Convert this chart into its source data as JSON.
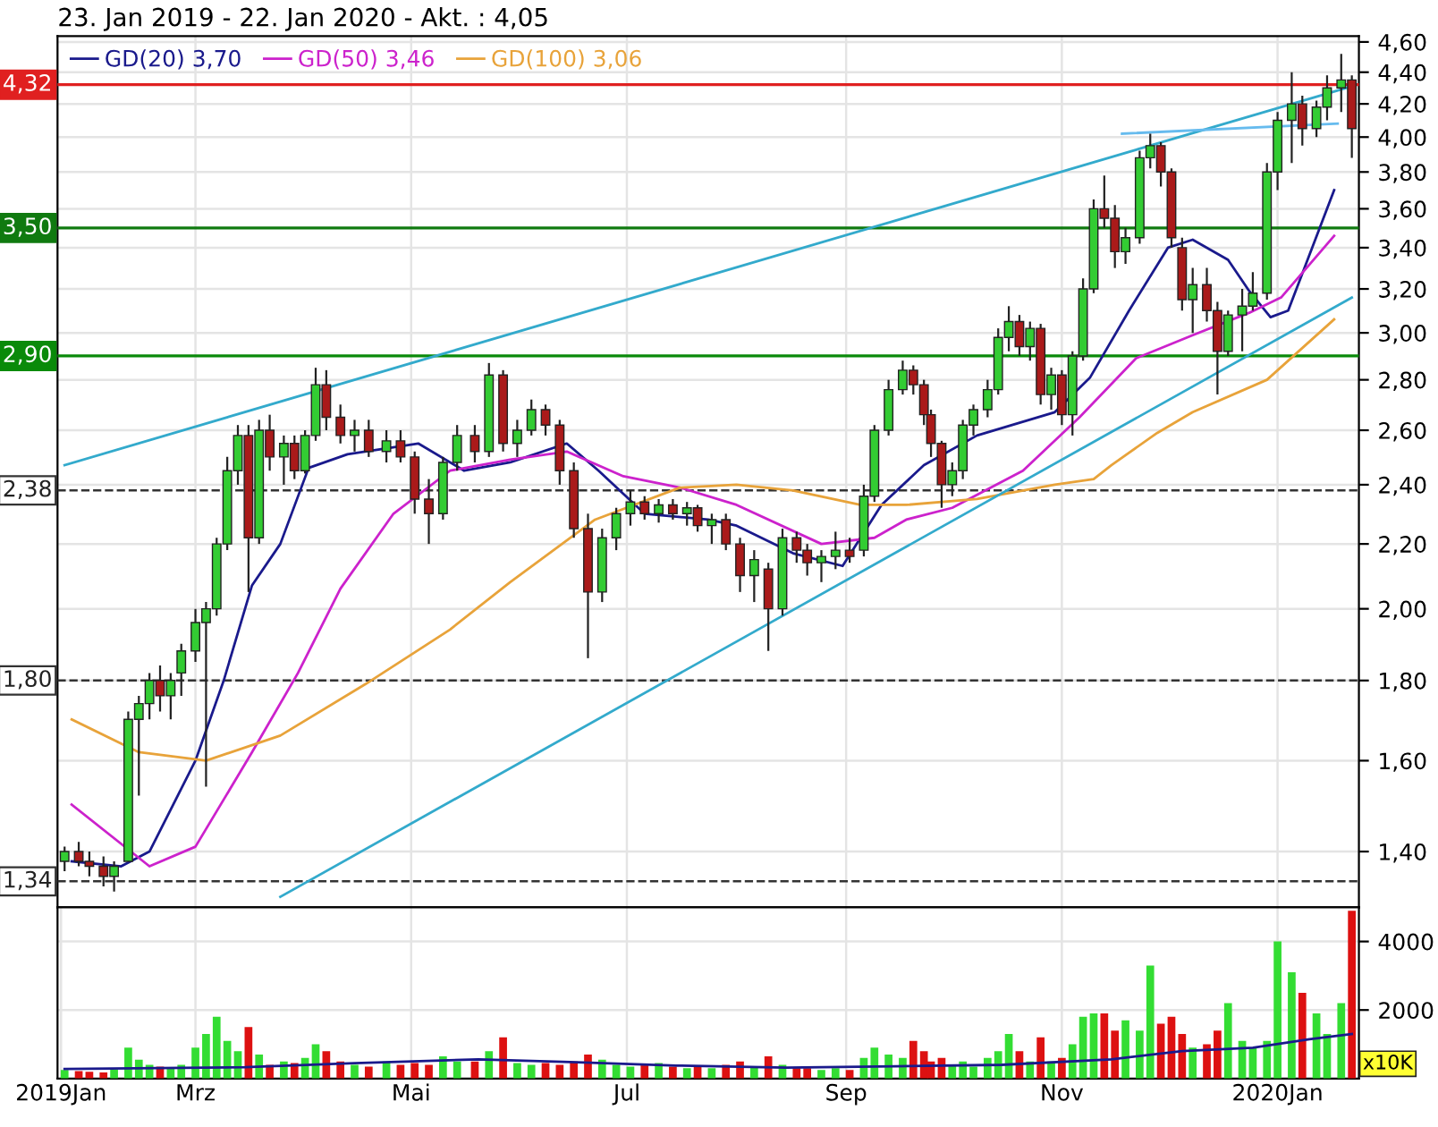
{
  "chart_data": [
    {
      "type": "candlestick",
      "title": "23. Jan 2019 - 22. Jan 2020 - Akt. : 4,05",
      "x": [
        "2019-01-23",
        "2019-01-27",
        "2019-01-30",
        "2019-02-03",
        "2019-02-06",
        "2019-02-10",
        "2019-02-13",
        "2019-02-16",
        "2019-02-19",
        "2019-02-22",
        "2019-02-25",
        "2019-03-01",
        "2019-03-04",
        "2019-03-07",
        "2019-03-10",
        "2019-03-13",
        "2019-03-16",
        "2019-03-19",
        "2019-03-22",
        "2019-03-26",
        "2019-03-29",
        "2019-04-01",
        "2019-04-04",
        "2019-04-07",
        "2019-04-11",
        "2019-04-15",
        "2019-04-19",
        "2019-04-24",
        "2019-04-28",
        "2019-05-02",
        "2019-05-06",
        "2019-05-10",
        "2019-05-14",
        "2019-05-19",
        "2019-05-23",
        "2019-05-27",
        "2019-05-31",
        "2019-06-04",
        "2019-06-08",
        "2019-06-12",
        "2019-06-16",
        "2019-06-20",
        "2019-06-24",
        "2019-06-28",
        "2019-07-02",
        "2019-07-06",
        "2019-07-10",
        "2019-07-14",
        "2019-07-18",
        "2019-07-21",
        "2019-07-25",
        "2019-07-29",
        "2019-08-02",
        "2019-08-06",
        "2019-08-10",
        "2019-08-14",
        "2019-08-18",
        "2019-08-21",
        "2019-08-25",
        "2019-08-29",
        "2019-09-02",
        "2019-09-06",
        "2019-09-09",
        "2019-09-13",
        "2019-09-17",
        "2019-09-20",
        "2019-09-23",
        "2019-09-25",
        "2019-09-28",
        "2019-10-01",
        "2019-10-04",
        "2019-10-07",
        "2019-10-11",
        "2019-10-14",
        "2019-10-17",
        "2019-10-20",
        "2019-10-23",
        "2019-10-26",
        "2019-10-29",
        "2019-11-01",
        "2019-11-04",
        "2019-11-07",
        "2019-11-10",
        "2019-11-13",
        "2019-11-16",
        "2019-11-19",
        "2019-11-23",
        "2019-11-26",
        "2019-11-29",
        "2019-12-02",
        "2019-12-05",
        "2019-12-08",
        "2019-12-12",
        "2019-12-15",
        "2019-12-18",
        "2019-12-22",
        "2019-12-25",
        "2019-12-29",
        "2020-01-01",
        "2020-01-05",
        "2020-01-08",
        "2020-01-12",
        "2020-01-15",
        "2020-01-19",
        "2020-01-22"
      ],
      "ohlc": [
        [
          1.38,
          1.41,
          1.36,
          1.4
        ],
        [
          1.4,
          1.42,
          1.37,
          1.38
        ],
        [
          1.38,
          1.4,
          1.35,
          1.37
        ],
        [
          1.37,
          1.39,
          1.33,
          1.35
        ],
        [
          1.35,
          1.38,
          1.32,
          1.37
        ],
        [
          1.38,
          1.72,
          1.38,
          1.7
        ],
        [
          1.7,
          1.76,
          1.52,
          1.74
        ],
        [
          1.74,
          1.82,
          1.7,
          1.8
        ],
        [
          1.8,
          1.84,
          1.72,
          1.76
        ],
        [
          1.76,
          1.82,
          1.7,
          1.8
        ],
        [
          1.82,
          1.9,
          1.76,
          1.88
        ],
        [
          1.88,
          2.0,
          1.85,
          1.96
        ],
        [
          1.96,
          2.02,
          1.54,
          2.0
        ],
        [
          2.0,
          2.22,
          1.98,
          2.2
        ],
        [
          2.2,
          2.5,
          2.18,
          2.45
        ],
        [
          2.45,
          2.62,
          2.4,
          2.58
        ],
        [
          2.58,
          2.62,
          2.05,
          2.22
        ],
        [
          2.22,
          2.64,
          2.2,
          2.6
        ],
        [
          2.6,
          2.66,
          2.45,
          2.5
        ],
        [
          2.5,
          2.58,
          2.4,
          2.55
        ],
        [
          2.55,
          2.58,
          2.42,
          2.45
        ],
        [
          2.45,
          2.6,
          2.44,
          2.58
        ],
        [
          2.58,
          2.85,
          2.56,
          2.78
        ],
        [
          2.78,
          2.84,
          2.6,
          2.65
        ],
        [
          2.65,
          2.7,
          2.55,
          2.58
        ],
        [
          2.58,
          2.64,
          2.52,
          2.6
        ],
        [
          2.6,
          2.64,
          2.5,
          2.52
        ],
        [
          2.52,
          2.6,
          2.48,
          2.56
        ],
        [
          2.56,
          2.6,
          2.48,
          2.5
        ],
        [
          2.5,
          2.52,
          2.3,
          2.35
        ],
        [
          2.35,
          2.42,
          2.2,
          2.3
        ],
        [
          2.3,
          2.5,
          2.28,
          2.48
        ],
        [
          2.48,
          2.62,
          2.45,
          2.58
        ],
        [
          2.58,
          2.62,
          2.48,
          2.52
        ],
        [
          2.52,
          2.87,
          2.5,
          2.82
        ],
        [
          2.82,
          2.84,
          2.52,
          2.55
        ],
        [
          2.55,
          2.64,
          2.5,
          2.6
        ],
        [
          2.6,
          2.72,
          2.58,
          2.68
        ],
        [
          2.68,
          2.7,
          2.58,
          2.62
        ],
        [
          2.62,
          2.64,
          2.4,
          2.45
        ],
        [
          2.45,
          2.48,
          2.22,
          2.25
        ],
        [
          2.25,
          2.3,
          1.86,
          2.05
        ],
        [
          2.05,
          2.25,
          2.02,
          2.22
        ],
        [
          2.22,
          2.32,
          2.18,
          2.3
        ],
        [
          2.3,
          2.38,
          2.26,
          2.34
        ],
        [
          2.34,
          2.36,
          2.28,
          2.3
        ],
        [
          2.3,
          2.35,
          2.27,
          2.33
        ],
        [
          2.33,
          2.35,
          2.28,
          2.3
        ],
        [
          2.3,
          2.34,
          2.26,
          2.32
        ],
        [
          2.32,
          2.33,
          2.24,
          2.26
        ],
        [
          2.26,
          2.3,
          2.2,
          2.28
        ],
        [
          2.28,
          2.3,
          2.18,
          2.2
        ],
        [
          2.2,
          2.22,
          2.05,
          2.1
        ],
        [
          2.1,
          2.18,
          2.02,
          2.15
        ],
        [
          2.12,
          2.14,
          1.88,
          2.0
        ],
        [
          2.0,
          2.25,
          1.98,
          2.22
        ],
        [
          2.22,
          2.24,
          2.14,
          2.18
        ],
        [
          2.18,
          2.2,
          2.1,
          2.14
        ],
        [
          2.14,
          2.18,
          2.08,
          2.16
        ],
        [
          2.16,
          2.24,
          2.12,
          2.18
        ],
        [
          2.18,
          2.22,
          2.14,
          2.16
        ],
        [
          2.18,
          2.4,
          2.16,
          2.36
        ],
        [
          2.36,
          2.62,
          2.34,
          2.6
        ],
        [
          2.6,
          2.8,
          2.58,
          2.76
        ],
        [
          2.76,
          2.88,
          2.74,
          2.84
        ],
        [
          2.84,
          2.86,
          2.74,
          2.78
        ],
        [
          2.78,
          2.8,
          2.62,
          2.66
        ],
        [
          2.66,
          2.68,
          2.5,
          2.55
        ],
        [
          2.55,
          2.56,
          2.32,
          2.4
        ],
        [
          2.4,
          2.48,
          2.36,
          2.45
        ],
        [
          2.45,
          2.64,
          2.42,
          2.62
        ],
        [
          2.62,
          2.7,
          2.58,
          2.68
        ],
        [
          2.68,
          2.8,
          2.65,
          2.76
        ],
        [
          2.76,
          3.02,
          2.74,
          2.98
        ],
        [
          2.98,
          3.12,
          2.92,
          3.05
        ],
        [
          3.05,
          3.08,
          2.9,
          2.94
        ],
        [
          2.94,
          3.05,
          2.88,
          3.02
        ],
        [
          3.02,
          3.04,
          2.7,
          2.74
        ],
        [
          2.74,
          2.85,
          2.68,
          2.82
        ],
        [
          2.82,
          2.84,
          2.62,
          2.66
        ],
        [
          2.66,
          2.92,
          2.58,
          2.9
        ],
        [
          2.9,
          3.25,
          2.88,
          3.2
        ],
        [
          3.2,
          3.65,
          3.18,
          3.6
        ],
        [
          3.6,
          3.78,
          3.5,
          3.55
        ],
        [
          3.55,
          3.62,
          3.3,
          3.38
        ],
        [
          3.38,
          3.5,
          3.32,
          3.45
        ],
        [
          3.45,
          3.92,
          3.42,
          3.88
        ],
        [
          3.88,
          4.02,
          3.82,
          3.95
        ],
        [
          3.95,
          3.97,
          3.72,
          3.8
        ],
        [
          3.8,
          3.82,
          3.4,
          3.45
        ],
        [
          3.4,
          3.45,
          3.1,
          3.15
        ],
        [
          3.15,
          3.3,
          3.0,
          3.22
        ],
        [
          3.22,
          3.3,
          3.05,
          3.1
        ],
        [
          3.1,
          3.14,
          2.74,
          2.92
        ],
        [
          2.92,
          3.1,
          2.9,
          3.08
        ],
        [
          3.08,
          3.2,
          2.92,
          3.12
        ],
        [
          3.12,
          3.28,
          3.1,
          3.18
        ],
        [
          3.18,
          3.85,
          3.15,
          3.8
        ],
        [
          3.8,
          4.15,
          3.7,
          4.1
        ],
        [
          4.1,
          4.4,
          3.85,
          4.2
        ],
        [
          4.2,
          4.25,
          3.95,
          4.05
        ],
        [
          4.05,
          4.22,
          4.0,
          4.18
        ],
        [
          4.18,
          4.38,
          4.1,
          4.3
        ],
        [
          4.3,
          4.52,
          4.15,
          4.35
        ],
        [
          4.35,
          4.38,
          3.88,
          4.05
        ]
      ],
      "series": [
        {
          "type": "line",
          "name": "GD(20) 3,70",
          "color": "#1a1a8c",
          "x": [
            "2019-01-25",
            "2019-02-08",
            "2019-02-16",
            "2019-03-01",
            "2019-03-09",
            "2019-03-17",
            "2019-03-25",
            "2019-04-02",
            "2019-04-13",
            "2019-05-03",
            "2019-05-16",
            "2019-05-29",
            "2019-06-14",
            "2019-06-23",
            "2019-07-06",
            "2019-07-24",
            "2019-08-01",
            "2019-08-17",
            "2019-08-31",
            "2019-09-11",
            "2019-09-23",
            "2019-10-08",
            "2019-10-30",
            "2019-11-09",
            "2019-11-20",
            "2019-12-01",
            "2019-12-08",
            "2019-12-18",
            "2019-12-24",
            "2019-12-30",
            "2020-01-04",
            "2020-01-17"
          ],
          "values": [
            1.38,
            1.37,
            1.4,
            1.6,
            1.8,
            2.07,
            2.2,
            2.46,
            2.51,
            2.55,
            2.45,
            2.48,
            2.55,
            2.45,
            2.3,
            2.28,
            2.26,
            2.17,
            2.13,
            2.33,
            2.47,
            2.58,
            2.67,
            2.81,
            3.1,
            3.4,
            3.44,
            3.34,
            3.19,
            3.07,
            3.1,
            3.7
          ]
        },
        {
          "type": "line",
          "name": "GD(50) 3,46",
          "color": "#cc22cc",
          "x": [
            "2019-01-25",
            "2019-02-16",
            "2019-03-01",
            "2019-03-17",
            "2019-03-30",
            "2019-04-11",
            "2019-04-26",
            "2019-05-12",
            "2019-05-29",
            "2019-06-14",
            "2019-06-30",
            "2019-07-16",
            "2019-08-01",
            "2019-08-25",
            "2019-09-09",
            "2019-09-18",
            "2019-10-01",
            "2019-10-21",
            "2019-11-06",
            "2019-11-22",
            "2019-12-08",
            "2019-12-24",
            "2020-01-02",
            "2020-01-17"
          ],
          "values": [
            1.5,
            1.37,
            1.41,
            1.62,
            1.82,
            2.06,
            2.3,
            2.45,
            2.49,
            2.52,
            2.43,
            2.39,
            2.33,
            2.2,
            2.22,
            2.28,
            2.32,
            2.45,
            2.65,
            2.89,
            2.99,
            3.09,
            3.16,
            3.46
          ]
        },
        {
          "type": "line",
          "name": "GD(100) 3,06",
          "color": "#e8a33a",
          "x": [
            "2019-01-25",
            "2019-02-13",
            "2019-03-04",
            "2019-03-25",
            "2019-04-18",
            "2019-05-12",
            "2019-05-29",
            "2019-06-22",
            "2019-07-16",
            "2019-08-01",
            "2019-08-17",
            "2019-09-05",
            "2019-09-18",
            "2019-10-08",
            "2019-10-30",
            "2019-11-10",
            "2019-11-15",
            "2019-11-28",
            "2019-12-08",
            "2019-12-29",
            "2020-01-17"
          ],
          "values": [
            1.7,
            1.62,
            1.6,
            1.66,
            1.79,
            1.94,
            2.08,
            2.28,
            2.39,
            2.4,
            2.38,
            2.33,
            2.33,
            2.35,
            2.4,
            2.42,
            2.47,
            2.59,
            2.67,
            2.8,
            3.06
          ]
        },
        {
          "type": "line",
          "color": "#33aacc",
          "x": [
            "2019-01-23",
            "2020-01-22"
          ],
          "values": [
            2.47,
            4.31
          ]
        },
        {
          "type": "line",
          "color": "#33aacc",
          "x": [
            "2019-03-25",
            "2020-01-22"
          ],
          "values": [
            1.31,
            3.16
          ]
        },
        {
          "type": "line",
          "color": "#66bbee",
          "x": [
            "2019-11-18",
            "2020-01-18"
          ],
          "values": [
            4.02,
            4.08
          ]
        }
      ],
      "xlim": [
        "2019-01-21",
        "2020-01-24"
      ],
      "ylim": [
        1.29,
        4.64
      ],
      "log": true,
      "yticks": [
        {
          "value": 1.4,
          "label": "1,40"
        },
        {
          "value": 1.6,
          "label": "1,60"
        },
        {
          "value": 1.8,
          "label": "1,80"
        },
        {
          "value": 2.0,
          "label": "2,00"
        },
        {
          "value": 2.2,
          "label": "2,20"
        },
        {
          "value": 2.4,
          "label": "2,40"
        },
        {
          "value": 2.6,
          "label": "2,60"
        },
        {
          "value": 2.8,
          "label": "2,80"
        },
        {
          "value": 3.0,
          "label": "3,00"
        },
        {
          "value": 3.2,
          "label": "3,20"
        },
        {
          "value": 3.4,
          "label": "3,40"
        },
        {
          "value": 3.6,
          "label": "3,60"
        },
        {
          "value": 3.8,
          "label": "3,80"
        },
        {
          "value": 4.0,
          "label": "4,00"
        },
        {
          "value": 4.2,
          "label": "4,20"
        },
        {
          "value": 4.4,
          "label": "4,40"
        },
        {
          "value": 4.6,
          "label": "4,60"
        }
      ],
      "xticks": [
        {
          "value": "2019-03-01",
          "label": null
        },
        {
          "value": "2019-05-01",
          "label": null
        },
        {
          "value": "2019-07-01",
          "label": null
        },
        {
          "value": "2019-09-01",
          "label": null
        },
        {
          "value": "2019-11-01",
          "label": null
        },
        {
          "value": "2020-01-01",
          "label": null
        }
      ],
      "tick_labels": "y",
      "grid": true,
      "legend": "top left",
      "ref_lines": [
        {
          "axis": "y",
          "value": 4.32,
          "label": "4,32",
          "color": "#e02020"
        },
        {
          "axis": "y",
          "value": 3.5,
          "label": "3,50",
          "color": "#107a10"
        },
        {
          "axis": "y",
          "value": 2.9,
          "label": "2,90",
          "color": "#0a8a0a"
        },
        {
          "axis": "y",
          "value": 2.38,
          "label": "2,38",
          "color": "#333333",
          "line_style": "dashed"
        },
        {
          "axis": "y",
          "value": 1.8,
          "label": "1,80",
          "color": "#333333",
          "line_style": "dashed"
        },
        {
          "axis": "y",
          "value": 1.34,
          "label": "1,34",
          "color": "#333333",
          "line_style": "dashed"
        }
      ]
    },
    {
      "type": "bar",
      "x": [
        "2019-01-23",
        "2019-01-27",
        "2019-01-30",
        "2019-02-03",
        "2019-02-06",
        "2019-02-10",
        "2019-02-13",
        "2019-02-16",
        "2019-02-19",
        "2019-02-22",
        "2019-02-25",
        "2019-03-01",
        "2019-03-04",
        "2019-03-07",
        "2019-03-10",
        "2019-03-13",
        "2019-03-16",
        "2019-03-19",
        "2019-03-22",
        "2019-03-26",
        "2019-03-29",
        "2019-04-01",
        "2019-04-04",
        "2019-04-07",
        "2019-04-11",
        "2019-04-15",
        "2019-04-19",
        "2019-04-24",
        "2019-04-28",
        "2019-05-02",
        "2019-05-06",
        "2019-05-10",
        "2019-05-14",
        "2019-05-19",
        "2019-05-23",
        "2019-05-27",
        "2019-05-31",
        "2019-06-04",
        "2019-06-08",
        "2019-06-12",
        "2019-06-16",
        "2019-06-20",
        "2019-06-24",
        "2019-06-28",
        "2019-07-02",
        "2019-07-06",
        "2019-07-10",
        "2019-07-14",
        "2019-07-18",
        "2019-07-21",
        "2019-07-25",
        "2019-07-29",
        "2019-08-02",
        "2019-08-06",
        "2019-08-10",
        "2019-08-14",
        "2019-08-18",
        "2019-08-21",
        "2019-08-25",
        "2019-08-29",
        "2019-09-02",
        "2019-09-06",
        "2019-09-09",
        "2019-09-13",
        "2019-09-17",
        "2019-09-20",
        "2019-09-23",
        "2019-09-25",
        "2019-09-28",
        "2019-10-01",
        "2019-10-04",
        "2019-10-07",
        "2019-10-11",
        "2019-10-14",
        "2019-10-17",
        "2019-10-20",
        "2019-10-23",
        "2019-10-26",
        "2019-10-29",
        "2019-11-01",
        "2019-11-04",
        "2019-11-07",
        "2019-11-10",
        "2019-11-13",
        "2019-11-16",
        "2019-11-19",
        "2019-11-23",
        "2019-11-26",
        "2019-11-29",
        "2019-12-02",
        "2019-12-05",
        "2019-12-08",
        "2019-12-12",
        "2019-12-15",
        "2019-12-18",
        "2019-12-22",
        "2019-12-25",
        "2019-12-29",
        "2020-01-01",
        "2020-01-05",
        "2020-01-08",
        "2020-01-12",
        "2020-01-15",
        "2020-01-19",
        "2020-01-22"
      ],
      "series": [
        {
          "type": "bar",
          "values": [
            250,
            220,
            200,
            180,
            260,
            900,
            550,
            400,
            350,
            300,
            400,
            900,
            1300,
            1800,
            1100,
            800,
            1500,
            700,
            400,
            500,
            450,
            600,
            1000,
            800,
            500,
            400,
            350,
            500,
            400,
            450,
            400,
            650,
            500,
            500,
            800,
            1200,
            450,
            400,
            450,
            400,
            500,
            700,
            550,
            400,
            350,
            400,
            450,
            350,
            300,
            350,
            300,
            400,
            500,
            350,
            650,
            400,
            300,
            300,
            250,
            300,
            250,
            600,
            900,
            700,
            600,
            1100,
            800,
            500,
            600,
            400,
            500,
            350,
            600,
            800,
            1300,
            800,
            500,
            1200,
            500,
            600,
            1000,
            1800,
            1900,
            1900,
            1400,
            1700,
            1400,
            3300,
            1600,
            1800,
            1300,
            900,
            1000,
            1400,
            2200,
            1100,
            900,
            1100,
            4000,
            3100,
            2500,
            1900,
            1300,
            2200,
            4900
          ],
          "colors": [
            "#33dd33",
            "#dd1111",
            "#dd1111",
            "#dd1111",
            "#33dd33",
            "#33dd33",
            "#33dd33",
            "#33dd33",
            "#dd1111",
            "#33dd33",
            "#33dd33",
            "#33dd33",
            "#33dd33",
            "#33dd33",
            "#33dd33",
            "#33dd33",
            "#dd1111",
            "#33dd33",
            "#dd1111",
            "#33dd33",
            "#dd1111",
            "#33dd33",
            "#33dd33",
            "#dd1111",
            "#dd1111",
            "#33dd33",
            "#dd1111",
            "#33dd33",
            "#dd1111",
            "#dd1111",
            "#dd1111",
            "#33dd33",
            "#33dd33",
            "#dd1111",
            "#33dd33",
            "#dd1111",
            "#33dd33",
            "#33dd33",
            "#dd1111",
            "#dd1111",
            "#dd1111",
            "#dd1111",
            "#33dd33",
            "#33dd33",
            "#33dd33",
            "#dd1111",
            "#33dd33",
            "#dd1111",
            "#33dd33",
            "#dd1111",
            "#33dd33",
            "#dd1111",
            "#dd1111",
            "#33dd33",
            "#dd1111",
            "#33dd33",
            "#dd1111",
            "#dd1111",
            "#33dd33",
            "#33dd33",
            "#dd1111",
            "#33dd33",
            "#33dd33",
            "#33dd33",
            "#33dd33",
            "#dd1111",
            "#dd1111",
            "#dd1111",
            "#dd1111",
            "#33dd33",
            "#33dd33",
            "#33dd33",
            "#33dd33",
            "#33dd33",
            "#33dd33",
            "#dd1111",
            "#33dd33",
            "#dd1111",
            "#33dd33",
            "#dd1111",
            "#33dd33",
            "#33dd33",
            "#33dd33",
            "#dd1111",
            "#dd1111",
            "#33dd33",
            "#33dd33",
            "#33dd33",
            "#dd1111",
            "#dd1111",
            "#dd1111",
            "#33dd33",
            "#dd1111",
            "#dd1111",
            "#33dd33",
            "#33dd33",
            "#33dd33",
            "#33dd33",
            "#33dd33",
            "#33dd33",
            "#dd1111",
            "#33dd33",
            "#33dd33",
            "#33dd33",
            "#dd1111"
          ]
        },
        {
          "type": "line",
          "color": "#1a1a8c",
          "x": [
            "2019-01-23",
            "2019-03-15",
            "2019-04-15",
            "2019-05-20",
            "2019-06-15",
            "2019-07-15",
            "2019-08-15",
            "2019-09-15",
            "2019-10-15",
            "2019-11-15",
            "2019-12-05",
            "2019-12-25",
            "2020-01-10",
            "2020-01-22"
          ],
          "values": [
            280,
            330,
            450,
            560,
            480,
            380,
            320,
            360,
            400,
            560,
            800,
            900,
            1150,
            1300
          ]
        }
      ],
      "xlim": [
        "2019-01-21",
        "2020-01-24"
      ],
      "ylim": [
        0,
        5000
      ],
      "yticks": [
        2000,
        4000
      ],
      "xticks": [
        {
          "value": "2019-01-22",
          "label": "2019Jan"
        },
        {
          "value": "2019-03-01",
          "label": "Mrz"
        },
        {
          "value": "2019-05-01",
          "label": "Mai"
        },
        {
          "value": "2019-07-01",
          "label": "Jul"
        },
        {
          "value": "2019-09-01",
          "label": "Sep"
        },
        {
          "value": "2019-11-01",
          "label": "Nov"
        },
        {
          "value": "2020-01-01",
          "label": "2020Jan"
        }
      ],
      "grid": true,
      "annotations": [
        "x10K"
      ]
    }
  ]
}
